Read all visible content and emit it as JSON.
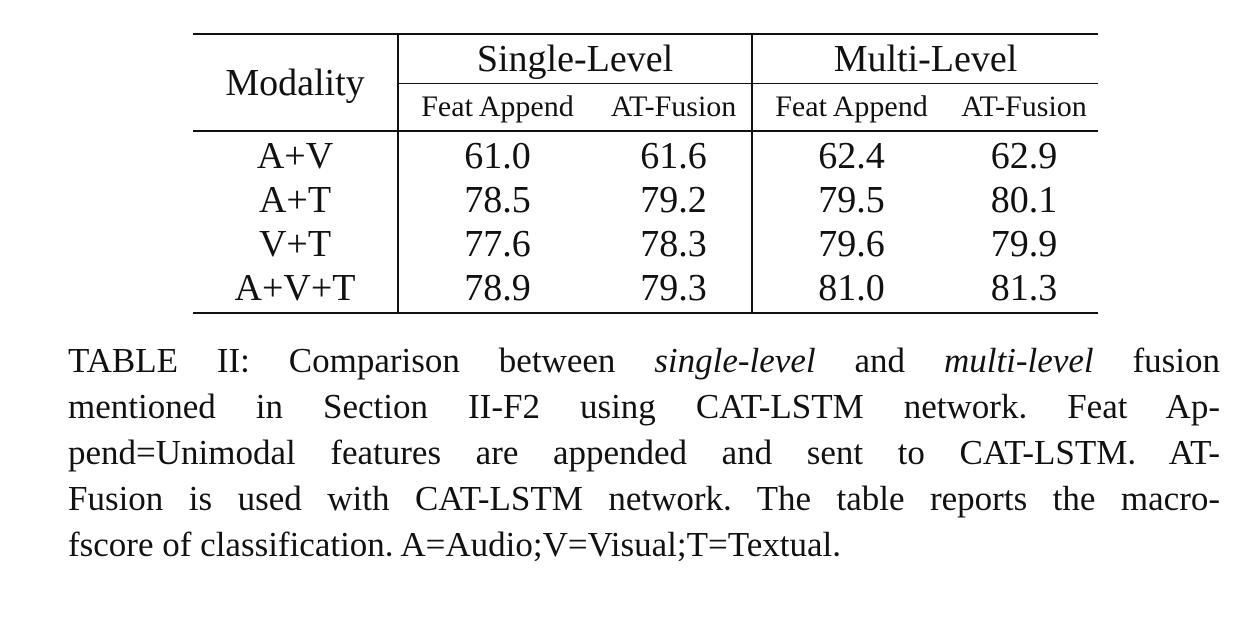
{
  "table": {
    "modality_header": "Modality",
    "groups": [
      "Single-Level",
      "Multi-Level"
    ],
    "subheaders": [
      "Feat Append",
      "AT-Fusion",
      "Feat Append",
      "AT-Fusion"
    ],
    "rows": [
      {
        "modality": "A+V",
        "single_feat": "61.0",
        "single_at": "61.6",
        "multi_feat": "62.4",
        "multi_at": "62.9"
      },
      {
        "modality": "A+T",
        "single_feat": "78.5",
        "single_at": "79.2",
        "multi_feat": "79.5",
        "multi_at": "80.1"
      },
      {
        "modality": "V+T",
        "single_feat": "77.6",
        "single_at": "78.3",
        "multi_feat": "79.6",
        "multi_at": "79.9"
      },
      {
        "modality": "A+V+T",
        "single_feat": "78.9",
        "single_at": "79.3",
        "multi_feat": "81.0",
        "multi_at": "81.3"
      }
    ]
  },
  "caption": {
    "l1_a": "TABLE II: Comparison between ",
    "l1_b": "single-level",
    "l1_c": " and ",
    "l1_d": "multi-level",
    "l1_e": " fusion",
    "l2": "mentioned in Section II-F2 using CAT-LSTM network. Feat Ap-",
    "l3": "pend=Unimodal features are appended and sent to CAT-LSTM. AT-",
    "l4": "Fusion is used with CAT-LSTM network. The table reports the macro-",
    "l5": "fscore of classification. A=Audio;V=Visual;T=Textual."
  }
}
